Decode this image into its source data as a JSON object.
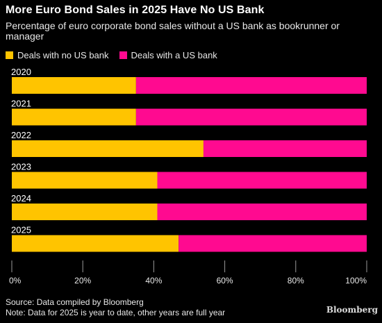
{
  "header": {
    "title": "More Euro Bond Sales in 2025 Have No US Bank",
    "subtitle": "Percentage of euro corporate bond sales without a US bank as bookrunner or manager"
  },
  "legend": [
    {
      "label": "Deals with no US bank",
      "color": "#FFC400"
    },
    {
      "label": "Deals with a US bank",
      "color": "#FF0A90"
    }
  ],
  "chart_data": {
    "type": "bar",
    "orientation": "horizontal",
    "stacked": true,
    "categories": [
      "2020",
      "2021",
      "2022",
      "2023",
      "2024",
      "2025"
    ],
    "series": [
      {
        "name": "Deals with no US bank",
        "color": "#FFC400",
        "values": [
          35,
          35,
          54,
          41,
          41,
          47
        ]
      },
      {
        "name": "Deals with a US bank",
        "color": "#FF0A90",
        "values": [
          65,
          65,
          46,
          59,
          59,
          53
        ]
      }
    ],
    "xlim": [
      0,
      100
    ],
    "x_ticks": [
      "0%",
      "20%",
      "40%",
      "60%",
      "80%",
      "100%"
    ],
    "grid": false,
    "legend_position": "top-left"
  },
  "footer": {
    "source": "Source: Data compiled by Bloomberg",
    "note": "Note: Data for 2025 is year to date, other years are full year",
    "brand": "Bloomberg"
  }
}
